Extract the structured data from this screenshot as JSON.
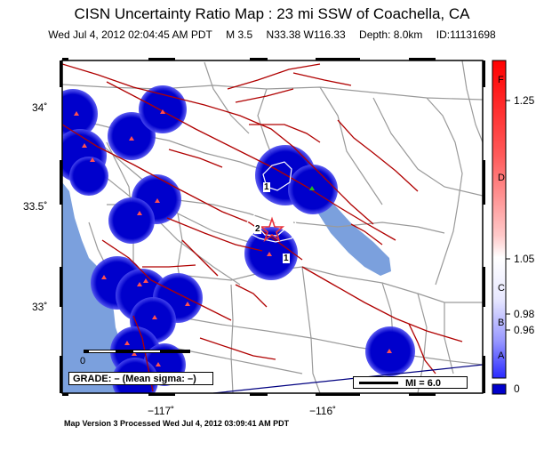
{
  "title": "CISN Uncertainty Ratio Map : 23 mi SSW of Coachella, CA",
  "subtitle": {
    "datetime": "Wed Jul  4, 2012 02:04:45 AM PDT",
    "magnitude": "M 3.5",
    "location": "N33.38 W116.33",
    "depth": "Depth: 8.0km",
    "id": "ID:11131698"
  },
  "axes": {
    "y_ticks": [
      "34˚",
      "33.5˚",
      "33˚"
    ],
    "x_ticks": [
      "−117˚",
      "−116˚"
    ]
  },
  "map": {
    "contour_labels": [
      "1",
      "2",
      "1"
    ],
    "scale_zero": "0",
    "colors": {
      "land": "#ffffff",
      "ocean": "#7ba0dd",
      "lake": "#7ba0dd",
      "uncertainty_blob": "#0000cc",
      "fault": "#b00000",
      "road": "#9a9a9a",
      "epicenter": "#e8333b",
      "station": "#ff5050"
    }
  },
  "colorbar": {
    "values": [
      "1.25",
      "1.05",
      "0.98",
      "0.96",
      "0"
    ],
    "grades": [
      "F",
      "D",
      "C",
      "B",
      "A"
    ]
  },
  "grade_box": "GRADE: – (Mean sigma: –)",
  "mi_box": "MI = 6.0",
  "footer": "Map Version 3 Processed Wed Jul  4, 2012 03:09:41 AM PDT"
}
